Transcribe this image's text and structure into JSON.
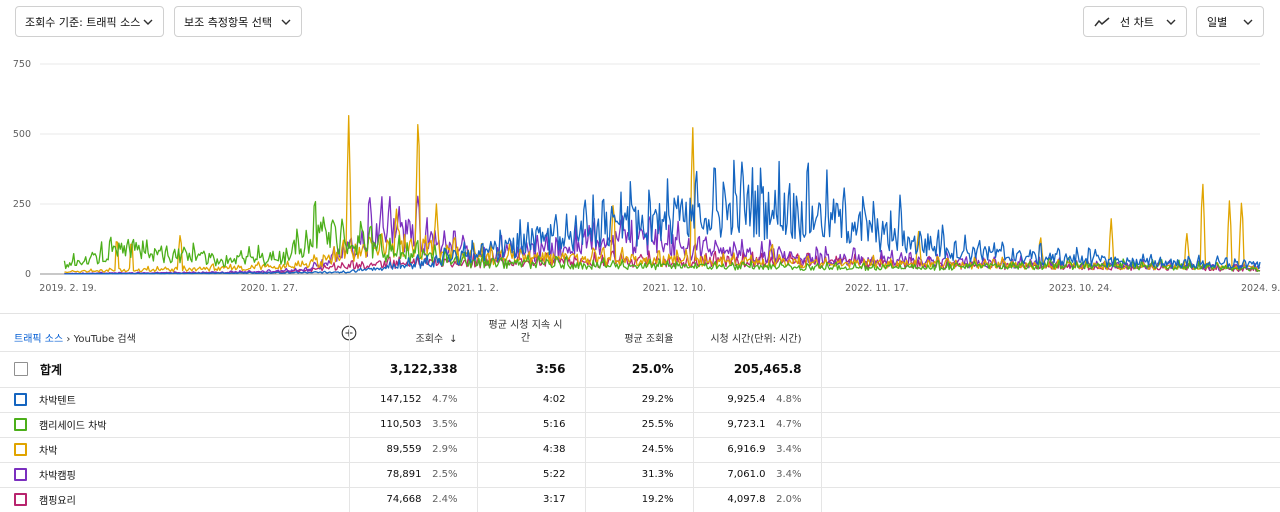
{
  "toolbar": {
    "metric_dropdown": "조회수 기준: 트래픽 소스",
    "secondary_dropdown": "보조 측정항목 선택",
    "chart_type_dropdown": "선 차트",
    "period_dropdown": "일별"
  },
  "colors": {
    "series_blue": "#1565c0",
    "series_green": "#4caf1a",
    "series_orange": "#e0a400",
    "series_purple": "#7b2fbf",
    "series_magenta": "#b8246e"
  },
  "chart_data": {
    "type": "line",
    "ylim": [
      0,
      750
    ],
    "yticks": [
      "750",
      "500",
      "250",
      "0"
    ],
    "xticks": [
      "2019. 2. 19.",
      "2020. 1. 27.",
      "2021. 1. 2.",
      "2021. 12. 10.",
      "2022. 11. 17.",
      "2023. 10. 24.",
      "2024. 9. 30."
    ],
    "series": [
      {
        "name": "차박텐트",
        "color": "#1565c0",
        "anchors": [
          [
            0,
            0
          ],
          [
            0.12,
            2
          ],
          [
            0.2,
            4
          ],
          [
            0.25,
            6
          ],
          [
            0.3,
            30
          ],
          [
            0.35,
            60
          ],
          [
            0.4,
            110
          ],
          [
            0.45,
            150
          ],
          [
            0.5,
            180
          ],
          [
            0.55,
            200
          ],
          [
            0.58,
            230
          ],
          [
            0.62,
            210
          ],
          [
            0.66,
            180
          ],
          [
            0.7,
            120
          ],
          [
            0.75,
            80
          ],
          [
            0.8,
            60
          ],
          [
            0.85,
            50
          ],
          [
            0.9,
            40
          ],
          [
            0.95,
            35
          ],
          [
            1,
            30
          ]
        ],
        "spikes": [
          [
            0.505,
            270
          ],
          [
            0.52,
            290
          ],
          [
            0.54,
            300
          ],
          [
            0.56,
            250
          ],
          [
            0.6,
            240
          ],
          [
            0.68,
            200
          ],
          [
            0.705,
            290
          ],
          [
            0.74,
            190
          ],
          [
            0.77,
            130
          ],
          [
            0.86,
            110
          ]
        ]
      },
      {
        "name": "캠리세이드 차박",
        "color": "#4caf1a",
        "anchors": [
          [
            0,
            0
          ],
          [
            0.02,
            30
          ],
          [
            0.05,
            60
          ],
          [
            0.08,
            90
          ],
          [
            0.1,
            70
          ],
          [
            0.15,
            45
          ],
          [
            0.2,
            60
          ],
          [
            0.225,
            140
          ],
          [
            0.25,
            120
          ],
          [
            0.28,
            80
          ],
          [
            0.35,
            40
          ],
          [
            0.45,
            30
          ],
          [
            0.55,
            25
          ],
          [
            0.65,
            22
          ],
          [
            0.75,
            25
          ],
          [
            0.85,
            30
          ],
          [
            0.95,
            25
          ],
          [
            1,
            15
          ]
        ],
        "spikes": [
          [
            0.06,
            110
          ],
          [
            0.12,
            80
          ],
          [
            0.232,
            190
          ],
          [
            0.247,
            175
          ],
          [
            0.265,
            150
          ]
        ]
      },
      {
        "name": "차박",
        "color": "#e0a400",
        "anchors": [
          [
            0,
            0
          ],
          [
            0.04,
            10
          ],
          [
            0.1,
            15
          ],
          [
            0.2,
            25
          ],
          [
            0.24,
            50
          ],
          [
            0.28,
            110
          ],
          [
            0.32,
            90
          ],
          [
            0.36,
            60
          ],
          [
            0.45,
            50
          ],
          [
            0.55,
            45
          ],
          [
            0.6,
            40
          ],
          [
            0.7,
            35
          ],
          [
            0.8,
            30
          ],
          [
            0.9,
            25
          ],
          [
            1,
            20
          ]
        ],
        "spikes": [
          [
            0.063,
            140
          ],
          [
            0.075,
            130
          ],
          [
            0.115,
            150
          ],
          [
            0.253,
            570
          ],
          [
            0.292,
            250
          ],
          [
            0.31,
            605
          ],
          [
            0.325,
            260
          ],
          [
            0.47,
            270
          ],
          [
            0.535,
            530
          ],
          [
            0.6,
            120
          ],
          [
            0.72,
            160
          ],
          [
            0.82,
            145
          ],
          [
            0.878,
            200
          ],
          [
            0.94,
            150
          ],
          [
            0.953,
            340
          ],
          [
            0.975,
            265
          ],
          [
            0.985,
            275
          ]
        ]
      },
      {
        "name": "차박캠핑",
        "color": "#7b2fbf",
        "anchors": [
          [
            0,
            0
          ],
          [
            0.05,
            3
          ],
          [
            0.15,
            5
          ],
          [
            0.22,
            12
          ],
          [
            0.26,
            100
          ],
          [
            0.29,
            150
          ],
          [
            0.31,
            120
          ],
          [
            0.35,
            70
          ],
          [
            0.42,
            80
          ],
          [
            0.46,
            110
          ],
          [
            0.5,
            120
          ],
          [
            0.53,
            90
          ],
          [
            0.58,
            70
          ],
          [
            0.65,
            50
          ],
          [
            0.75,
            40
          ],
          [
            0.85,
            30
          ],
          [
            0.95,
            25
          ],
          [
            1,
            20
          ]
        ],
        "spikes": [
          [
            0.27,
            320
          ],
          [
            0.28,
            300
          ],
          [
            0.31,
            315
          ],
          [
            0.45,
            180
          ],
          [
            0.5,
            220
          ],
          [
            0.54,
            160
          ]
        ]
      },
      {
        "name": "캠핑요리",
        "color": "#b8246e",
        "anchors": [
          [
            0,
            0
          ],
          [
            0.1,
            3
          ],
          [
            0.2,
            6
          ],
          [
            0.28,
            35
          ],
          [
            0.35,
            40
          ],
          [
            0.45,
            40
          ],
          [
            0.55,
            45
          ],
          [
            0.65,
            40
          ],
          [
            0.75,
            30
          ],
          [
            0.85,
            25
          ],
          [
            0.95,
            20
          ],
          [
            1,
            15
          ]
        ],
        "spikes": [
          [
            0.47,
            90
          ],
          [
            0.56,
            80
          ],
          [
            0.62,
            65
          ]
        ]
      }
    ]
  },
  "table": {
    "breadcrumb_link": "트래픽 소스",
    "breadcrumb_current": "YouTube 검색",
    "headers": {
      "views": "조회수",
      "avg_duration": "평균 시청 지속 시간",
      "avg_percent": "평균 조회율",
      "watch_time": "시청 시간(단위: 시간)"
    },
    "total": {
      "label": "합계",
      "views": "3,122,338",
      "avg_duration": "3:56",
      "avg_percent": "25.0%",
      "watch_time": "205,465.8"
    },
    "rows": [
      {
        "name": "차박텐트",
        "views": "147,152",
        "views_pct": "4.7%",
        "avg_duration": "4:02",
        "avg_percent": "29.2%",
        "watch_time": "9,925.4",
        "watch_pct": "4.8%"
      },
      {
        "name": "캠리세이드 차박",
        "views": "110,503",
        "views_pct": "3.5%",
        "avg_duration": "5:16",
        "avg_percent": "25.5%",
        "watch_time": "9,723.1",
        "watch_pct": "4.7%"
      },
      {
        "name": "차박",
        "views": "89,559",
        "views_pct": "2.9%",
        "avg_duration": "4:38",
        "avg_percent": "24.5%",
        "watch_time": "6,916.9",
        "watch_pct": "3.4%"
      },
      {
        "name": "차박캠핑",
        "views": "78,891",
        "views_pct": "2.5%",
        "avg_duration": "5:22",
        "avg_percent": "31.3%",
        "watch_time": "7,061.0",
        "watch_pct": "3.4%"
      },
      {
        "name": "캠핑요리",
        "views": "74,668",
        "views_pct": "2.4%",
        "avg_duration": "3:17",
        "avg_percent": "19.2%",
        "watch_time": "4,097.8",
        "watch_pct": "2.0%"
      }
    ]
  }
}
